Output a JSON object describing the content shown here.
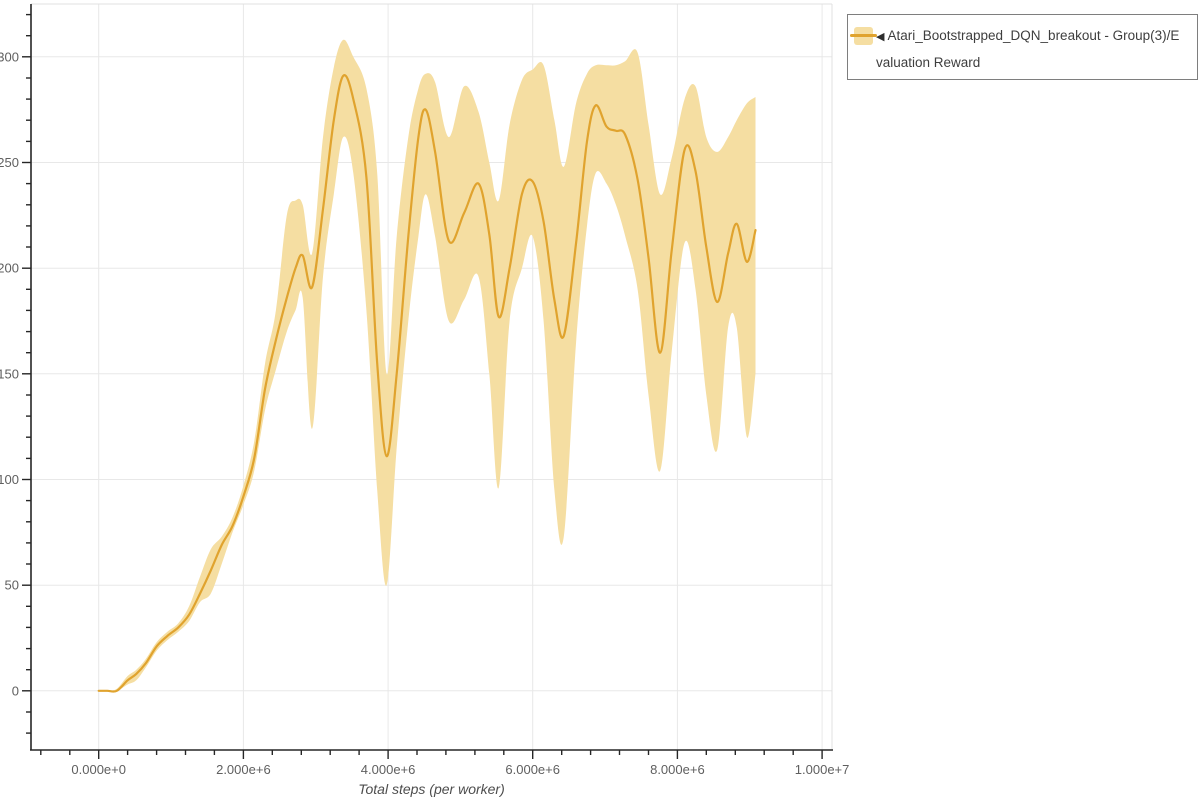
{
  "chart_data": {
    "type": "line",
    "title": "",
    "xlabel": "Total steps (per worker)",
    "ylabel": "",
    "grid": true,
    "xlim": [
      -936000,
      10137000
    ],
    "ylim": [
      -28,
      325
    ],
    "x_major_ticks": [
      0,
      2000000,
      4000000,
      6000000,
      8000000,
      10000000
    ],
    "x_tick_labels": [
      "0.000e+0",
      "2.000e+6",
      "4.000e+6",
      "6.000e+6",
      "8.000e+6",
      "1.000e+7"
    ],
    "x_minor_step": 400000,
    "y_major_ticks": [
      0,
      50,
      100,
      150,
      200,
      250,
      300
    ],
    "y_tick_labels": [
      "0",
      "50",
      "100",
      "150",
      "200",
      "250",
      "300"
    ],
    "y_minor_step": 10,
    "legend": {
      "position": "top-right",
      "marker": "◀",
      "label": "Atari_Bootstrapped_DQN_breakout - Group(3)/Evaluation Reward"
    },
    "colors": {
      "line": "#E0A32E",
      "band": "#F5DEA2",
      "grid": "#E8E8E8",
      "axis": "#262626",
      "plot_border": "#E0E0E0",
      "tick_label": "#5F5F5F",
      "axis_label": "#4D4D4D",
      "legend_border": "#7E7E7E",
      "legend_text": "#3E3E3E"
    },
    "series": [
      {
        "name": "Atari_Bootstrapped_DQN_breakout - Group(3)/Evaluation Reward",
        "x": [
          0,
          120000,
          250000,
          400000,
          520000,
          650000,
          800000,
          950000,
          1100000,
          1250000,
          1400000,
          1550000,
          1700000,
          1850000,
          2000000,
          2150000,
          2300000,
          2450000,
          2600000,
          2720000,
          2820000,
          2950000,
          3100000,
          3250000,
          3380000,
          3520000,
          3700000,
          3850000,
          3980000,
          4120000,
          4280000,
          4420000,
          4520000,
          4650000,
          4840000,
          5050000,
          5250000,
          5400000,
          5530000,
          5680000,
          5850000,
          6000000,
          6150000,
          6300000,
          6430000,
          6600000,
          6750000,
          6870000,
          7020000,
          7150000,
          7280000,
          7450000,
          7600000,
          7760000,
          7920000,
          8100000,
          8250000,
          8400000,
          8550000,
          8700000,
          8820000,
          8960000,
          9080000
        ],
        "y": [
          0,
          0,
          0,
          5,
          8,
          13,
          21,
          26,
          30,
          36,
          46,
          57,
          69,
          78,
          92,
          110,
          143,
          166,
          186,
          200,
          206,
          191,
          228,
          270,
          291,
          280,
          243,
          155,
          111,
          150,
          215,
          262,
          275,
          255,
          213,
          226,
          240,
          216,
          177,
          200,
          235,
          241,
          222,
          185,
          168,
          212,
          260,
          277,
          267,
          265,
          263,
          242,
          205,
          160,
          208,
          256,
          246,
          210,
          184,
          207,
          221,
          203,
          218
        ],
        "y_upper": [
          0,
          0,
          1,
          7,
          10,
          15,
          23,
          28,
          32,
          40,
          54,
          67,
          73,
          82,
          97,
          118,
          155,
          180,
          225,
          232,
          230,
          207,
          262,
          295,
          308,
          300,
          285,
          245,
          150,
          215,
          262,
          285,
          292,
          288,
          262,
          286,
          274,
          250,
          232,
          268,
          289,
          294,
          296,
          270,
          248,
          278,
          292,
          296,
          296,
          296,
          298,
          302,
          268,
          235,
          252,
          280,
          286,
          262,
          255,
          262,
          270,
          278,
          281
        ],
        "y_lower": [
          0,
          0,
          0,
          3,
          5,
          11,
          19,
          24,
          28,
          33,
          42,
          46,
          60,
          75,
          88,
          104,
          133,
          152,
          170,
          180,
          186,
          124,
          196,
          235,
          262,
          245,
          180,
          95,
          50,
          115,
          175,
          215,
          235,
          215,
          175,
          185,
          196,
          150,
          96,
          175,
          200,
          215,
          175,
          95,
          73,
          165,
          220,
          245,
          240,
          230,
          215,
          190,
          140,
          104,
          160,
          212,
          190,
          140,
          114,
          172,
          172,
          120,
          150
        ]
      }
    ]
  }
}
